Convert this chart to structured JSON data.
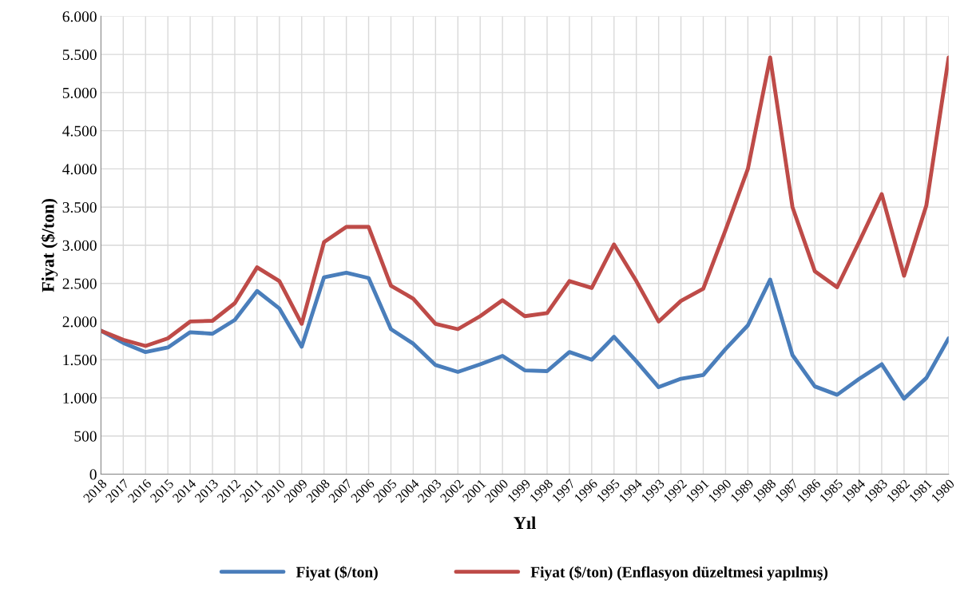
{
  "chart_data": {
    "type": "line",
    "xlabel": "Yıl",
    "ylabel": "Fiyat ($/ton)",
    "categories": [
      "2018",
      "2017",
      "2016",
      "2015",
      "2014",
      "2013",
      "2012",
      "2011",
      "2010",
      "2009",
      "2008",
      "2007",
      "2006",
      "2005",
      "2004",
      "2003",
      "2002",
      "2001",
      "2000",
      "1999",
      "1998",
      "1997",
      "1996",
      "1995",
      "1994",
      "1993",
      "1992",
      "1991",
      "1990",
      "1989",
      "1988",
      "1987",
      "1986",
      "1985",
      "1984",
      "1983",
      "1982",
      "1981",
      "1980"
    ],
    "series": [
      {
        "name": "Fiyat ($/ton)",
        "color": "#4a7ebb",
        "values": [
          1880,
          1720,
          1600,
          1660,
          1860,
          1840,
          2020,
          2400,
          2170,
          1670,
          2580,
          2640,
          2570,
          1900,
          1710,
          1430,
          1340,
          1440,
          1550,
          1360,
          1350,
          1600,
          1500,
          1800,
          1480,
          1140,
          1250,
          1300,
          1640,
          1950,
          2550,
          1560,
          1150,
          1040,
          1250,
          1440,
          990,
          1260,
          1780
        ]
      },
      {
        "name": "Fiyat ($/ton) (Enflasyon düzeltmesi yapılmış)",
        "color": "#be4b48",
        "values": [
          1880,
          1760,
          1680,
          1780,
          2000,
          2010,
          2240,
          2710,
          2530,
          1970,
          3040,
          3240,
          3240,
          2470,
          2300,
          1970,
          1900,
          2070,
          2280,
          2070,
          2110,
          2530,
          2440,
          3010,
          2530,
          2000,
          2270,
          2430,
          3200,
          4000,
          5460,
          3500,
          2660,
          2450,
          3050,
          3670,
          2600,
          3520,
          5460
        ]
      }
    ],
    "ylim": [
      0,
      6000
    ],
    "yticks": [
      0,
      500,
      {
        "value": 1000,
        "label": "1.000"
      },
      {
        "value": 1500,
        "label": "1.500"
      },
      {
        "value": 2000,
        "label": "2.000"
      },
      {
        "value": 2500,
        "label": "2.500"
      },
      {
        "value": 3000,
        "label": "3.000"
      },
      {
        "value": 3500,
        "label": "3.500"
      },
      {
        "value": 4000,
        "label": "4.000"
      },
      {
        "value": 4500,
        "label": "4.500"
      },
      {
        "value": 5000,
        "label": "5.000"
      },
      {
        "value": 5500,
        "label": "5.500"
      },
      {
        "value": 6000,
        "label": "6.000"
      }
    ],
    "grid": true,
    "legend": "bottom",
    "marker": "none",
    "line_style": "solid"
  }
}
